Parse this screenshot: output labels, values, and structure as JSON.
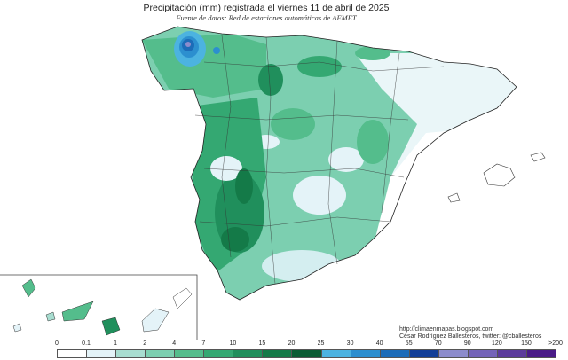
{
  "title": "Precipitación (mm) registrada el viernes 11 de abril de 2025",
  "subtitle": "Fuente de datos: Red de estaciones automáticas de AEMET",
  "credits": {
    "website": "http://climaenmapas.blogspot.com",
    "author": "César Rodríguez Ballesteros, twitter: @cballesteros"
  },
  "legend": {
    "labels": [
      "0",
      "0.1",
      "1",
      "2",
      "4",
      "7",
      "10",
      "15",
      "20",
      "25",
      "30",
      "40",
      "55",
      "70",
      "90",
      "120",
      "150",
      ">200"
    ],
    "colors": [
      "#ffffff",
      "#e4f3f8",
      "#a8ddd0",
      "#7ccfb0",
      "#54bd8c",
      "#34a872",
      "#208f5c",
      "#147a48",
      "#0a5c34",
      "#4cb3e0",
      "#2c8fcf",
      "#1c6cb8",
      "#123f98",
      "#8c8ccc",
      "#7464b8",
      "#5c3c9c",
      "#4a1c88"
    ]
  }
}
